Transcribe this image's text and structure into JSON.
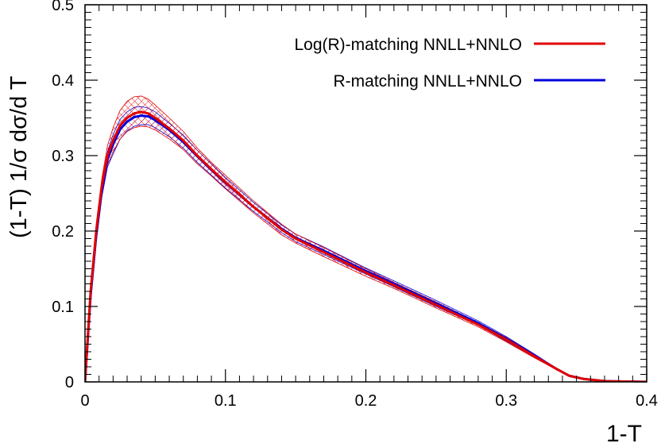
{
  "chart_data": {
    "type": "line",
    "xlabel": "1-T",
    "ylabel": "(1-T) 1/σ dσ/d T",
    "xlim": [
      0,
      0.4
    ],
    "ylim": [
      0,
      0.5
    ],
    "x_ticks": [
      0,
      0.1,
      0.2,
      0.3,
      0.4
    ],
    "y_ticks": [
      0,
      0.1,
      0.2,
      0.3,
      0.4,
      0.5
    ],
    "x_tick_labels": [
      "0",
      "0.1",
      "0.2",
      "0.3",
      "0.4"
    ],
    "y_tick_labels": [
      "0",
      "0.1",
      "0.2",
      "0.3",
      "0.4",
      "0.5"
    ],
    "legend_position": "top-right",
    "grid": false,
    "series": [
      {
        "name": "Log(R)-matching NNLL+NNLO",
        "color": "#e00000",
        "x": [
          0.0,
          0.004,
          0.008,
          0.012,
          0.016,
          0.02,
          0.025,
          0.03,
          0.035,
          0.04,
          0.045,
          0.05,
          0.06,
          0.07,
          0.08,
          0.09,
          0.1,
          0.12,
          0.14,
          0.15,
          0.17,
          0.2,
          0.22,
          0.25,
          0.28,
          0.3,
          0.32,
          0.335,
          0.345,
          0.355,
          0.37,
          0.4
        ],
        "y": [
          0.0,
          0.12,
          0.2,
          0.26,
          0.3,
          0.32,
          0.34,
          0.35,
          0.356,
          0.358,
          0.356,
          0.35,
          0.336,
          0.32,
          0.3,
          0.282,
          0.265,
          0.232,
          0.202,
          0.19,
          0.172,
          0.145,
          0.128,
          0.102,
          0.076,
          0.056,
          0.034,
          0.018,
          0.008,
          0.004,
          0.001,
          0.0
        ],
        "band_upper": [
          0.0,
          0.13,
          0.21,
          0.27,
          0.313,
          0.337,
          0.36,
          0.372,
          0.378,
          0.379,
          0.375,
          0.367,
          0.35,
          0.332,
          0.31,
          0.291,
          0.274,
          0.24,
          0.209,
          0.196,
          0.178,
          0.15,
          0.132,
          0.106,
          0.079,
          0.059,
          0.036,
          0.019,
          0.009,
          0.0045,
          0.0012,
          0.0
        ],
        "band_lower": [
          0.0,
          0.11,
          0.19,
          0.25,
          0.288,
          0.305,
          0.322,
          0.332,
          0.337,
          0.339,
          0.338,
          0.334,
          0.322,
          0.308,
          0.289,
          0.273,
          0.256,
          0.224,
          0.195,
          0.184,
          0.166,
          0.14,
          0.124,
          0.098,
          0.073,
          0.053,
          0.032,
          0.017,
          0.007,
          0.0035,
          0.0008,
          0.0
        ]
      },
      {
        "name": "R-matching NNLL+NNLO",
        "color": "#0000dd",
        "x": [
          0.0,
          0.004,
          0.008,
          0.012,
          0.016,
          0.02,
          0.025,
          0.03,
          0.035,
          0.04,
          0.045,
          0.05,
          0.06,
          0.07,
          0.08,
          0.09,
          0.1,
          0.12,
          0.14,
          0.15,
          0.17,
          0.2,
          0.22,
          0.25,
          0.28,
          0.3,
          0.32,
          0.335,
          0.345,
          0.355,
          0.37,
          0.4
        ],
        "y": [
          0.0,
          0.115,
          0.195,
          0.255,
          0.295,
          0.315,
          0.335,
          0.345,
          0.351,
          0.353,
          0.352,
          0.347,
          0.334,
          0.318,
          0.299,
          0.281,
          0.264,
          0.232,
          0.203,
          0.191,
          0.174,
          0.147,
          0.13,
          0.104,
          0.078,
          0.057,
          0.035,
          0.018,
          0.008,
          0.004,
          0.001,
          0.0
        ],
        "band_upper": [
          0.0,
          0.125,
          0.205,
          0.265,
          0.305,
          0.328,
          0.348,
          0.358,
          0.364,
          0.365,
          0.363,
          0.358,
          0.343,
          0.327,
          0.307,
          0.289,
          0.271,
          0.238,
          0.208,
          0.196,
          0.179,
          0.151,
          0.134,
          0.108,
          0.081,
          0.06,
          0.037,
          0.019,
          0.009,
          0.0045,
          0.0012,
          0.0
        ],
        "band_lower": [
          0.0,
          0.105,
          0.185,
          0.245,
          0.285,
          0.302,
          0.322,
          0.333,
          0.339,
          0.341,
          0.341,
          0.337,
          0.325,
          0.31,
          0.291,
          0.274,
          0.257,
          0.226,
          0.198,
          0.186,
          0.169,
          0.143,
          0.126,
          0.1,
          0.075,
          0.054,
          0.033,
          0.017,
          0.007,
          0.0035,
          0.0008,
          0.0
        ]
      }
    ]
  }
}
